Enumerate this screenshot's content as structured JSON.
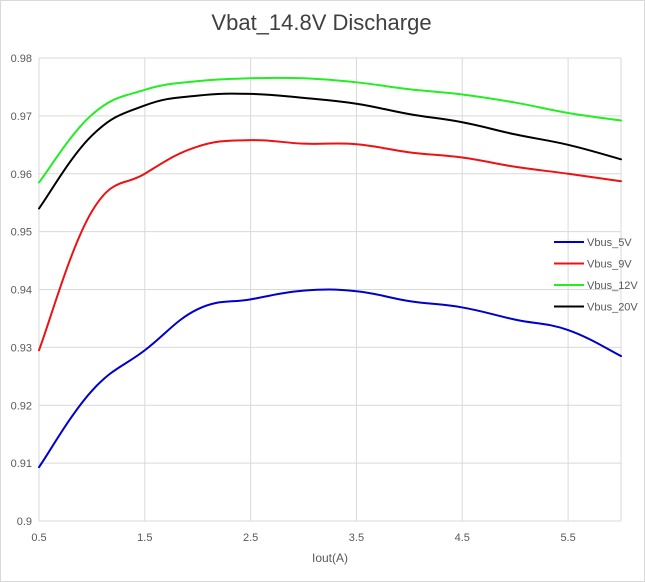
{
  "chart_data": {
    "type": "line",
    "title": "Vbat_14.8V Discharge",
    "xlabel": "Iout(A)",
    "ylabel": "",
    "xlim": [
      0.5,
      6.0
    ],
    "ylim": [
      0.9,
      0.98
    ],
    "x_ticks": [
      "0.5",
      "1.5",
      "2.5",
      "3.5",
      "4.5",
      "5.5"
    ],
    "x_tick_values": [
      0.5,
      1.5,
      2.5,
      3.5,
      4.5,
      5.5
    ],
    "y_ticks": [
      "0.9",
      "0.91",
      "0.92",
      "0.93",
      "0.94",
      "0.95",
      "0.96",
      "0.97",
      "0.98"
    ],
    "y_tick_values": [
      0.9,
      0.91,
      0.92,
      0.93,
      0.94,
      0.95,
      0.96,
      0.97,
      0.98
    ],
    "grid": true,
    "legend_position": "right",
    "series": [
      {
        "name": "Vbus_5V",
        "color": "#0000cc",
        "x": [
          0.5,
          1.0,
          1.5,
          2.0,
          2.5,
          3.0,
          3.5,
          4.0,
          4.5,
          5.0,
          5.5,
          6.0
        ],
        "values": [
          0.9093,
          0.9225,
          0.9295,
          0.9366,
          0.9383,
          0.9398,
          0.9397,
          0.938,
          0.9369,
          0.9348,
          0.933,
          0.9285
        ]
      },
      {
        "name": "Vbus_9V",
        "color": "#ee1111",
        "x": [
          0.5,
          1.0,
          1.5,
          2.0,
          2.5,
          3.0,
          3.5,
          4.0,
          4.5,
          5.0,
          5.5,
          6.0
        ],
        "values": [
          0.9295,
          0.9535,
          0.96,
          0.9647,
          0.9658,
          0.9652,
          0.9651,
          0.9637,
          0.9628,
          0.9612,
          0.96,
          0.9587
        ]
      },
      {
        "name": "Vbus_12V",
        "color": "#22ee22",
        "x": [
          0.5,
          1.0,
          1.5,
          2.0,
          2.5,
          3.0,
          3.5,
          4.0,
          4.5,
          5.0,
          5.5,
          6.0
        ],
        "values": [
          0.9585,
          0.9702,
          0.9745,
          0.976,
          0.9765,
          0.9765,
          0.9758,
          0.9746,
          0.9737,
          0.9723,
          0.9705,
          0.9692
        ]
      },
      {
        "name": "Vbus_20V",
        "color": "#000000",
        "x": [
          0.5,
          1.0,
          1.5,
          2.0,
          2.5,
          3.0,
          3.5,
          4.0,
          4.5,
          5.0,
          5.5,
          6.0
        ],
        "values": [
          0.954,
          0.9666,
          0.9718,
          0.9735,
          0.9738,
          0.9731,
          0.9721,
          0.9703,
          0.9689,
          0.9668,
          0.965,
          0.9625
        ]
      }
    ]
  }
}
